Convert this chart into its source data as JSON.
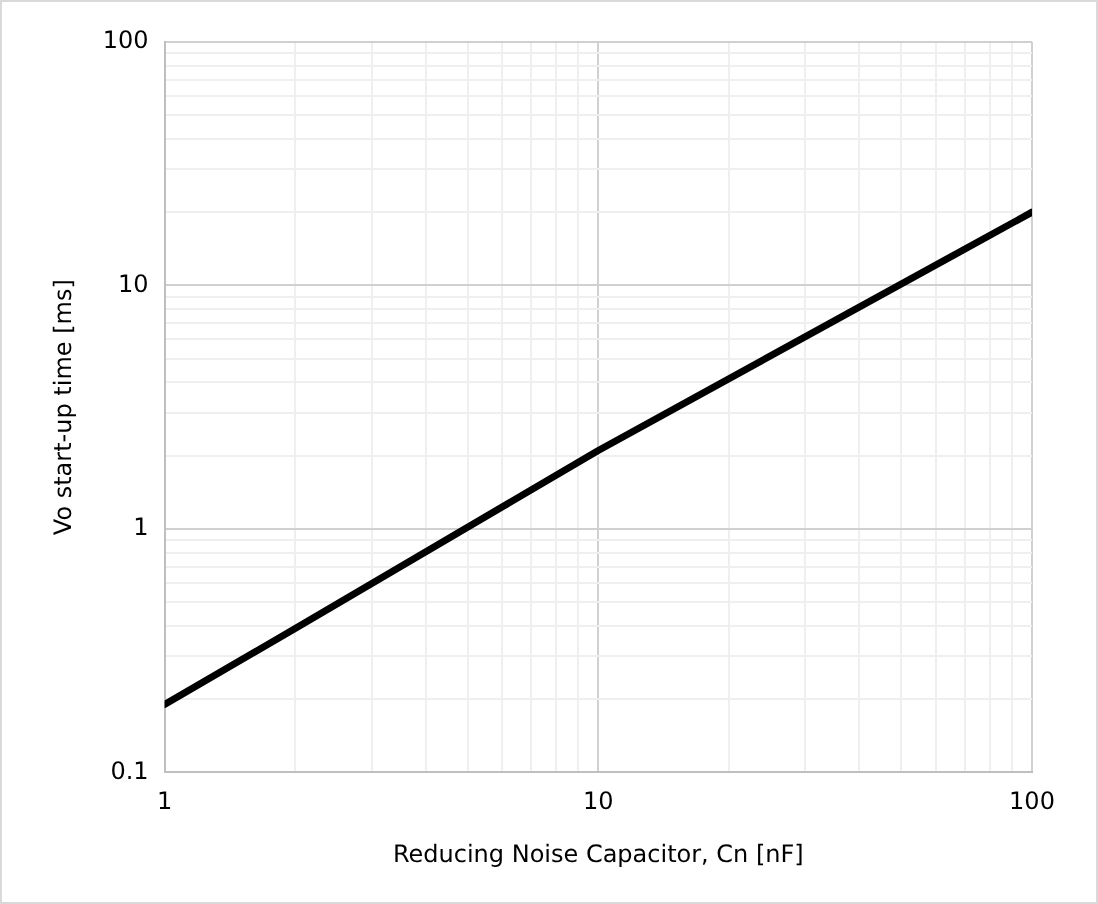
{
  "chart_data": {
    "type": "line",
    "xlabel": "Reducing Noise Capacitor, Cn [nF]",
    "ylabel": "Vo start-up time [ms]",
    "log": "xy",
    "grid": true,
    "legend": false,
    "marker": "none",
    "line_style": "solid",
    "x": [
      1,
      2,
      10,
      100
    ],
    "series": [
      {
        "color": "#000000",
        "values": [
          0.19,
          0.39,
          2.1,
          20
        ]
      }
    ],
    "xlim": [
      1,
      100
    ],
    "ylim": [
      0.1,
      100
    ],
    "xticks": [
      1,
      {
        "value": 2,
        "label": null
      },
      {
        "value": 3,
        "label": null
      },
      {
        "value": 4,
        "label": null
      },
      {
        "value": 5,
        "label": null
      },
      {
        "value": 6,
        "label": null
      },
      {
        "value": 7,
        "label": null
      },
      {
        "value": 8,
        "label": null
      },
      {
        "value": 9,
        "label": null
      },
      10,
      {
        "value": 20,
        "label": null
      },
      {
        "value": 30,
        "label": null
      },
      {
        "value": 40,
        "label": null
      },
      {
        "value": 50,
        "label": null
      },
      {
        "value": 60,
        "label": null
      },
      {
        "value": 70,
        "label": null
      },
      {
        "value": 80,
        "label": null
      },
      {
        "value": 90,
        "label": null
      },
      100
    ],
    "yticks": [
      0.1,
      {
        "value": 0.2,
        "label": null
      },
      {
        "value": 0.3,
        "label": null
      },
      {
        "value": 0.4,
        "label": null
      },
      {
        "value": 0.5,
        "label": null
      },
      {
        "value": 0.6,
        "label": null
      },
      {
        "value": 0.7,
        "label": null
      },
      {
        "value": 0.8,
        "label": null
      },
      {
        "value": 0.9,
        "label": null
      },
      1,
      {
        "value": 2,
        "label": null
      },
      {
        "value": 3,
        "label": null
      },
      {
        "value": 4,
        "label": null
      },
      {
        "value": 5,
        "label": null
      },
      {
        "value": 6,
        "label": null
      },
      {
        "value": 7,
        "label": null
      },
      {
        "value": 8,
        "label": null
      },
      {
        "value": 9,
        "label": null
      },
      10,
      {
        "value": 20,
        "label": null
      },
      {
        "value": 30,
        "label": null
      },
      {
        "value": 40,
        "label": null
      },
      {
        "value": 50,
        "label": null
      },
      {
        "value": 60,
        "label": null
      },
      {
        "value": 70,
        "label": null
      },
      {
        "value": 80,
        "label": null
      },
      {
        "value": 90,
        "label": null
      },
      100
    ]
  }
}
